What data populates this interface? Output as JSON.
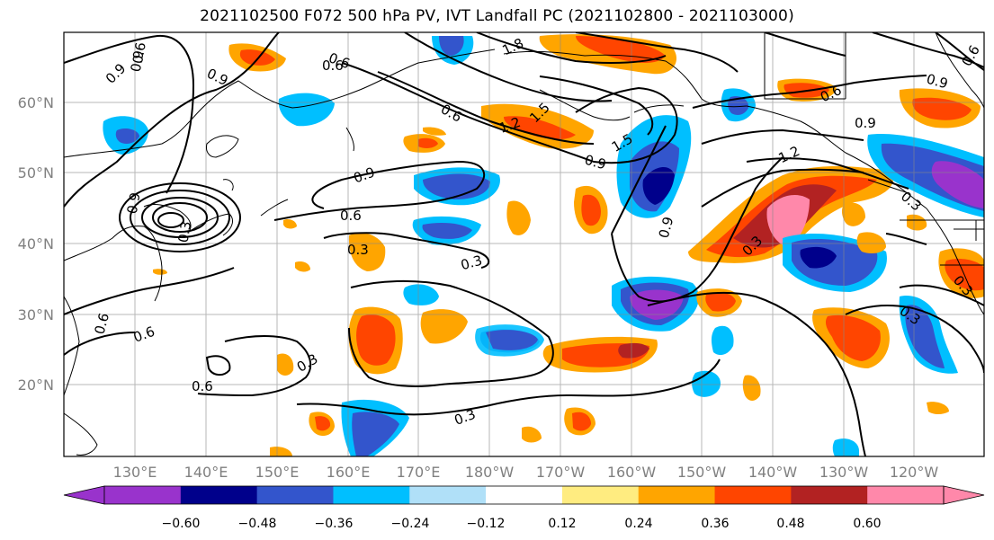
{
  "title": "2021102500 F072 500 hPa PV, IVT Landfall PC (2021102800 - 2021103000)",
  "lat_labels": [
    "60°N",
    "50°N",
    "40°N",
    "30°N",
    "20°N"
  ],
  "lon_labels": [
    "130°E",
    "140°E",
    "150°E",
    "160°E",
    "170°E",
    "180°W",
    "170°W",
    "160°W",
    "150°W",
    "140°W",
    "130°W",
    "120°W"
  ],
  "colorbar": {
    "colors": [
      "#9933cc",
      "#00008b",
      "#3355cc",
      "#00bfff",
      "#b0e0f8",
      "#ffffff",
      "#ffec80",
      "#ffa500",
      "#ff4500",
      "#b22222",
      "#ff88aa"
    ],
    "tick_labels": [
      "−0.60",
      "−0.48",
      "−0.36",
      "−0.24",
      "−0.12",
      "0.12",
      "0.24",
      "0.36",
      "0.48",
      "0.60"
    ]
  },
  "contour_labels": [
    "0.9",
    "0.9",
    "0.6",
    "0.9",
    "0.6",
    "0.9",
    "0.6",
    "0.3",
    "0.3",
    "0.6",
    "1.8",
    "1.5",
    "1.2",
    "0.6",
    "0.9",
    "1.5",
    "0.9",
    "0.9",
    "0.6",
    "1.2",
    "0.3",
    "0.6",
    "0.9",
    "0.3",
    "0.3",
    "0.3",
    "0.3",
    "0.3",
    "0.6",
    "0.6",
    "0.9",
    "0.3",
    "0.6"
  ]
}
